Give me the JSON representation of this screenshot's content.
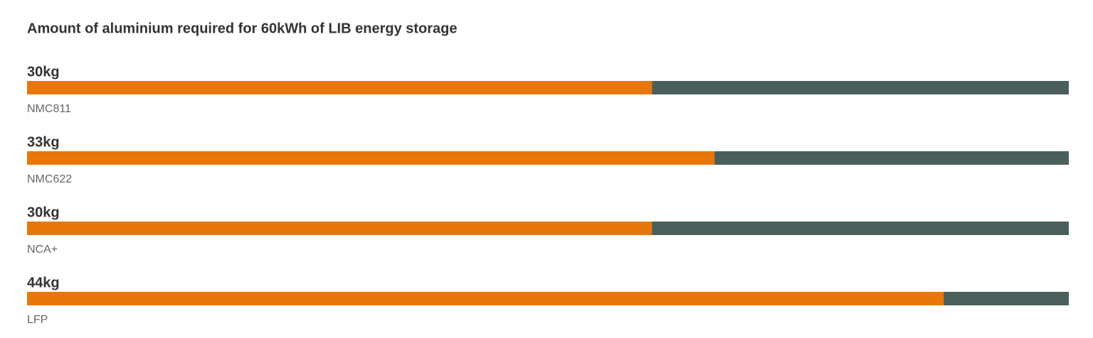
{
  "chart_data": {
    "type": "bar",
    "orientation": "horizontal",
    "title": "Amount of aluminium required for 60kWh of LIB energy storage",
    "categories": [
      "NMC811",
      "NMC622",
      "NCA+",
      "LFP"
    ],
    "values": [
      30,
      33,
      30,
      44
    ],
    "value_labels": [
      "30kg",
      "33kg",
      "30kg",
      "44kg"
    ],
    "color": "#e8770b",
    "track_color": "#4a5f5b",
    "xlim": [
      0,
      50
    ]
  }
}
